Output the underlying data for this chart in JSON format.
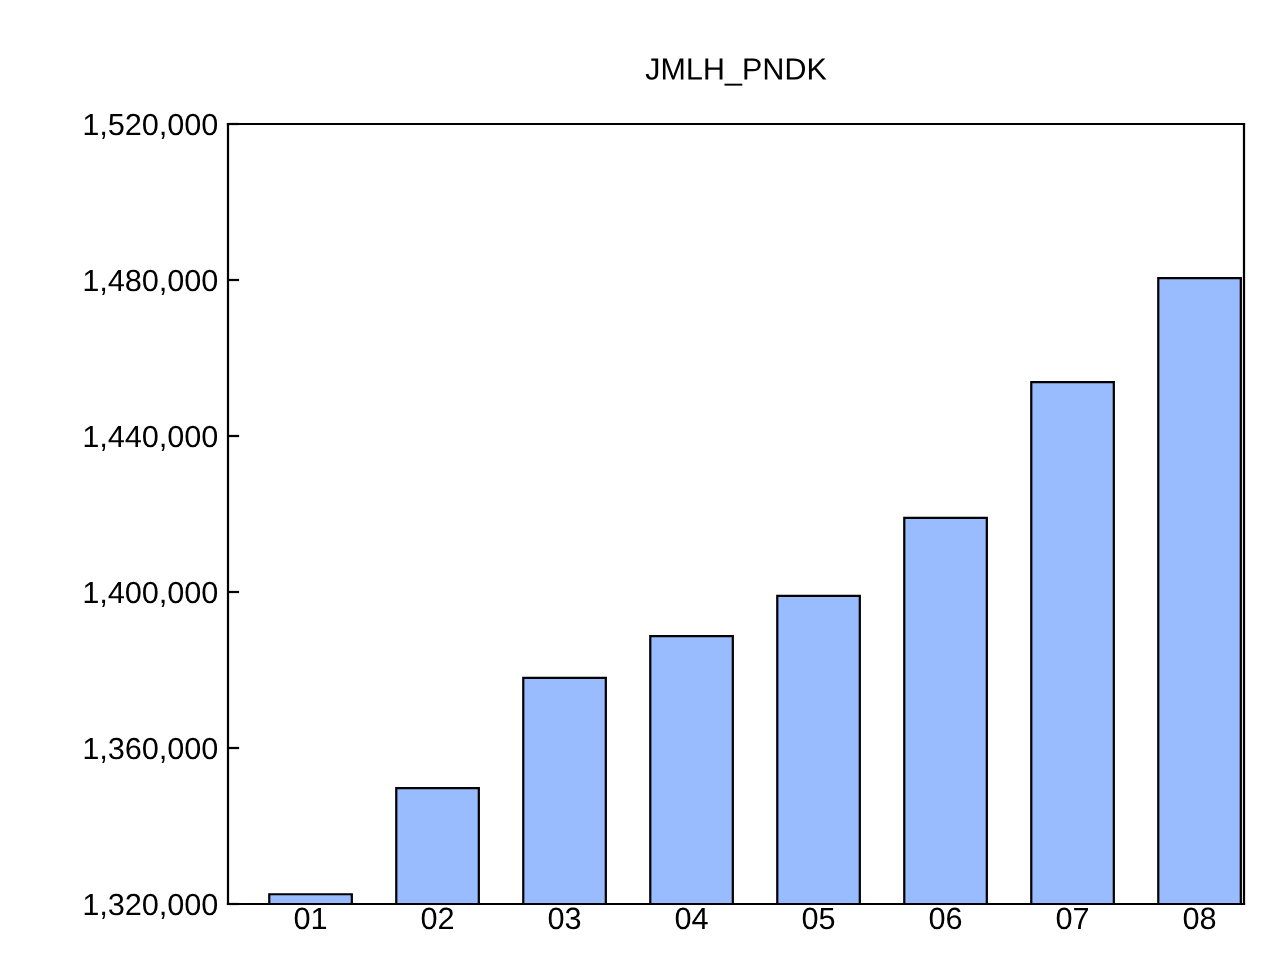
{
  "chart_data": {
    "type": "bar",
    "title": "JMLH_PNDK",
    "categories": [
      "01",
      "02",
      "03",
      "04",
      "05",
      "06",
      "07",
      "08"
    ],
    "values": [
      1322500,
      1349700,
      1378000,
      1388700,
      1399000,
      1419000,
      1453800,
      1480500
    ],
    "color": "#99bbff",
    "ylim": [
      1320000,
      1520000
    ],
    "yticks": [
      {
        "value": 1320000,
        "label": "1,320,000"
      },
      {
        "value": 1360000,
        "label": "1,360,000"
      },
      {
        "value": 1400000,
        "label": "1,400,000"
      },
      {
        "value": 1440000,
        "label": "1,440,000"
      },
      {
        "value": 1480000,
        "label": "1,480,000"
      },
      {
        "value": 1520000,
        "label": "1,520,000"
      }
    ],
    "grid": false
  }
}
